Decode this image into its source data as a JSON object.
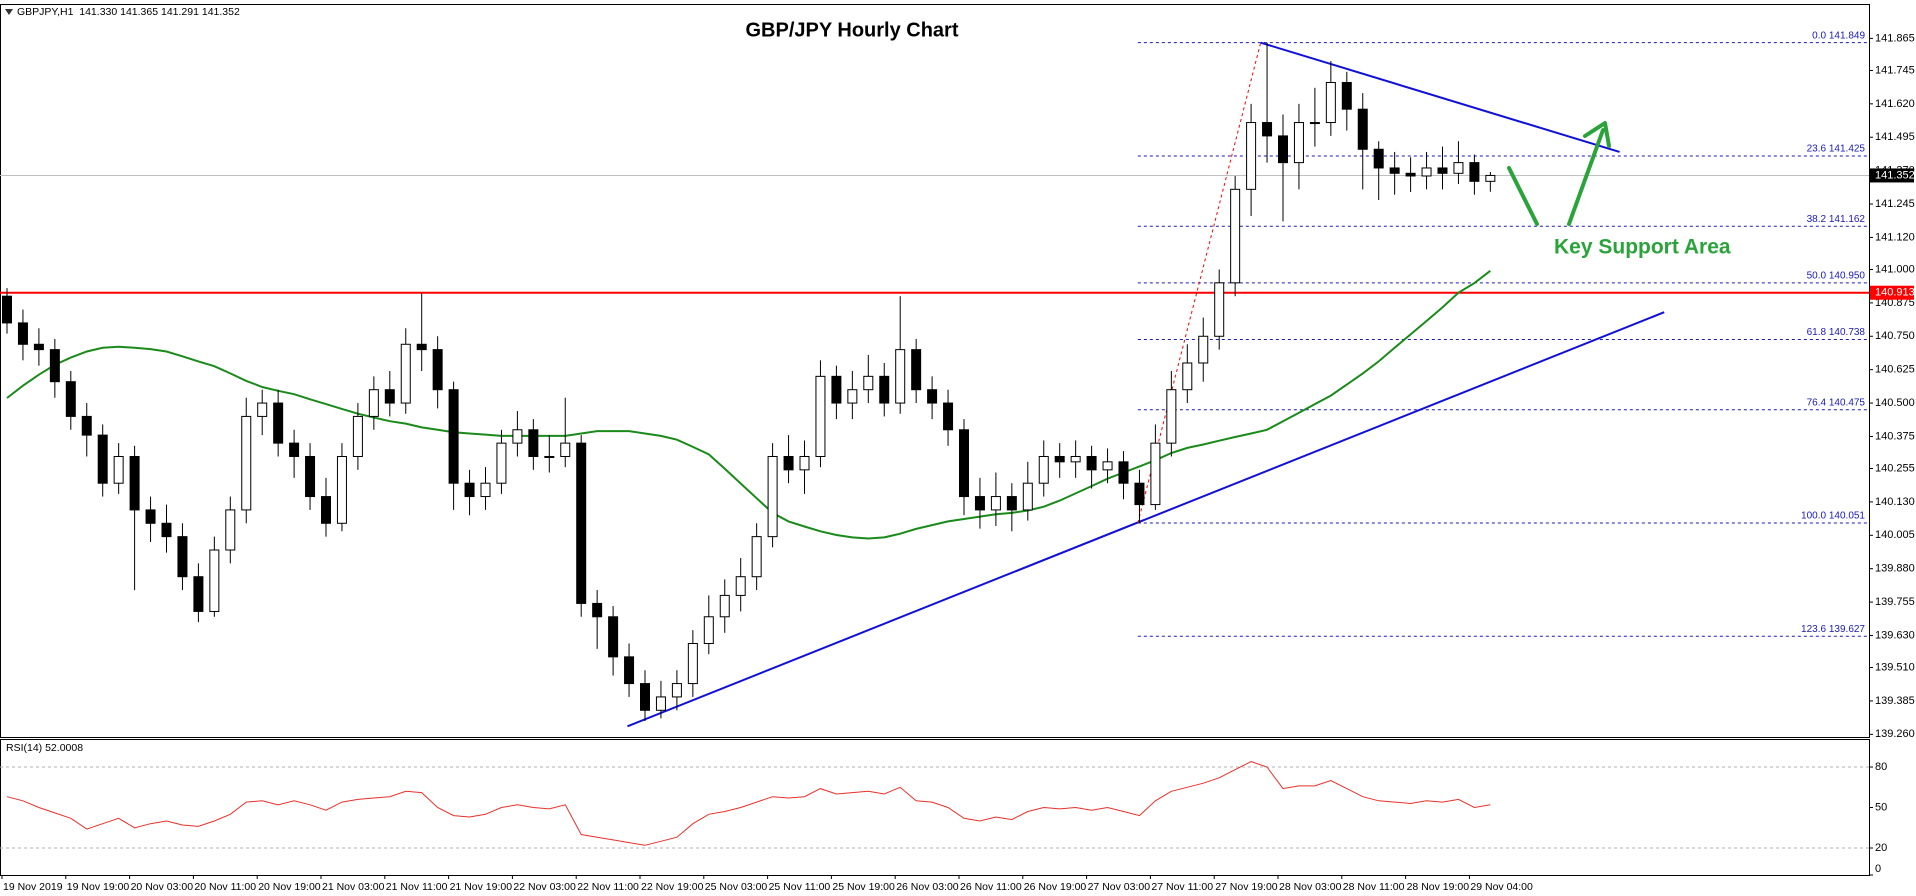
{
  "chart_data": {
    "type": "candlestick",
    "title": "GBP/JPY Hourly Chart",
    "header": "GBPJPY,H1  141.330 141.365 141.291 141.352",
    "support_label": "Key Support Area",
    "up_color": "#ffffff",
    "down_color": "#000000",
    "categories": [
      "19 Nov 2019",
      null,
      null,
      null,
      "19 Nov 19:00",
      null,
      null,
      null,
      "20 Nov 03:00",
      null,
      null,
      null,
      "20 Nov 11:00",
      null,
      null,
      null,
      "20 Nov 19:00",
      null,
      null,
      null,
      "21 Nov 03:00",
      null,
      null,
      null,
      "21 Nov 11:00",
      null,
      null,
      null,
      "21 Nov 19:00",
      null,
      null,
      null,
      "22 Nov 03:00",
      null,
      null,
      null,
      "22 Nov 11:00",
      null,
      null,
      null,
      "22 Nov 19:00",
      null,
      null,
      null,
      "25 Nov 03:00",
      null,
      null,
      null,
      "25 Nov 11:00",
      null,
      null,
      null,
      "25 Nov 19:00",
      null,
      null,
      null,
      "26 Nov 03:00",
      null,
      null,
      null,
      "26 Nov 11:00",
      null,
      null,
      null,
      "26 Nov 19:00",
      null,
      null,
      null,
      "27 Nov 03:00",
      null,
      null,
      null,
      "27 Nov 11:00",
      null,
      null,
      null,
      "27 Nov 19:00",
      null,
      null,
      null,
      "28 Nov 03:00",
      null,
      null,
      null,
      "28 Nov 11:00",
      null,
      null,
      null,
      "28 Nov 19:00",
      null,
      null,
      null,
      "29 Nov 04:00",
      null
    ],
    "open": [
      140.9,
      140.8,
      140.72,
      140.7,
      140.58,
      140.45,
      140.38,
      140.2,
      140.3,
      140.1,
      140.05,
      140.0,
      139.85,
      139.72,
      139.95,
      140.1,
      140.45,
      140.5,
      140.35,
      140.3,
      140.15,
      140.05,
      140.3,
      140.45,
      140.55,
      140.5,
      140.72,
      140.7,
      140.55,
      140.2,
      140.15,
      140.2,
      140.35,
      140.4,
      140.3,
      140.3,
      140.35,
      139.75,
      139.7,
      139.55,
      139.45,
      139.35,
      139.4,
      139.45,
      139.6,
      139.7,
      139.78,
      139.85,
      140.0,
      140.3,
      140.25,
      140.3,
      140.6,
      140.5,
      140.55,
      140.6,
      140.5,
      140.7,
      140.55,
      140.5,
      140.4,
      140.15,
      140.1,
      140.15,
      140.1,
      140.2,
      140.3,
      140.28,
      140.3,
      140.25,
      140.28,
      140.2,
      140.12,
      140.35,
      140.55,
      140.65,
      140.75,
      140.95,
      141.3,
      141.55,
      141.5,
      141.4,
      141.55,
      141.55,
      141.7,
      141.6,
      141.45,
      141.38,
      141.36,
      141.35,
      141.38,
      141.36,
      141.4,
      141.33
    ],
    "high": [
      140.93,
      140.85,
      140.78,
      140.74,
      140.62,
      140.5,
      140.42,
      140.35,
      140.34,
      140.15,
      140.12,
      140.05,
      139.9,
      140.0,
      140.15,
      140.52,
      140.55,
      140.55,
      140.4,
      140.35,
      140.22,
      140.35,
      140.5,
      140.6,
      140.62,
      140.78,
      140.91,
      140.75,
      140.58,
      140.25,
      140.26,
      140.4,
      140.47,
      140.44,
      140.38,
      140.52,
      140.38,
      139.8,
      139.74,
      139.6,
      139.5,
      139.46,
      139.5,
      139.65,
      139.78,
      139.84,
      139.92,
      140.05,
      140.35,
      140.38,
      140.36,
      140.66,
      140.64,
      140.62,
      140.68,
      140.65,
      140.9,
      140.74,
      140.6,
      140.55,
      140.44,
      140.22,
      140.24,
      140.2,
      140.28,
      140.36,
      140.35,
      140.36,
      140.34,
      140.33,
      140.32,
      140.25,
      140.42,
      140.62,
      140.72,
      140.82,
      141.0,
      141.35,
      141.62,
      141.849,
      141.58,
      141.62,
      141.68,
      141.78,
      141.74,
      141.66,
      141.48,
      141.44,
      141.42,
      141.44,
      141.46,
      141.48,
      141.43,
      141.365
    ],
    "low": [
      140.76,
      140.66,
      140.64,
      140.52,
      140.4,
      140.3,
      140.15,
      140.16,
      139.8,
      139.98,
      139.94,
      139.8,
      139.68,
      139.7,
      139.9,
      140.05,
      140.38,
      140.3,
      140.22,
      140.1,
      140.0,
      140.02,
      140.25,
      140.4,
      140.45,
      140.46,
      140.62,
      140.48,
      140.1,
      140.08,
      140.1,
      140.16,
      140.3,
      140.25,
      140.24,
      140.26,
      139.7,
      139.58,
      139.48,
      139.4,
      139.31,
      139.32,
      139.35,
      139.4,
      139.56,
      139.64,
      139.72,
      139.8,
      139.96,
      140.2,
      140.16,
      140.26,
      140.44,
      140.44,
      140.5,
      140.45,
      140.46,
      140.5,
      140.44,
      140.34,
      140.08,
      140.03,
      140.04,
      140.02,
      140.06,
      140.15,
      140.22,
      140.22,
      140.18,
      140.2,
      140.14,
      140.051,
      140.1,
      140.3,
      140.5,
      140.58,
      140.7,
      140.9,
      141.2,
      141.4,
      141.18,
      141.3,
      141.46,
      141.5,
      141.52,
      141.3,
      141.26,
      141.28,
      141.29,
      141.3,
      141.3,
      141.32,
      141.28,
      141.291
    ],
    "close": [
      140.8,
      140.72,
      140.7,
      140.58,
      140.45,
      140.38,
      140.2,
      140.3,
      140.1,
      140.05,
      140.0,
      139.85,
      139.72,
      139.95,
      140.1,
      140.45,
      140.5,
      140.35,
      140.3,
      140.15,
      140.05,
      140.3,
      140.45,
      140.55,
      140.5,
      140.72,
      140.7,
      140.55,
      140.2,
      140.15,
      140.2,
      140.35,
      140.4,
      140.3,
      140.3,
      140.35,
      139.75,
      139.7,
      139.55,
      139.45,
      139.35,
      139.4,
      139.45,
      139.6,
      139.7,
      139.78,
      139.85,
      140.0,
      140.3,
      140.25,
      140.3,
      140.6,
      140.5,
      140.55,
      140.6,
      140.5,
      140.7,
      140.55,
      140.5,
      140.4,
      140.15,
      140.1,
      140.15,
      140.1,
      140.2,
      140.3,
      140.28,
      140.3,
      140.25,
      140.28,
      140.2,
      140.12,
      140.35,
      140.55,
      140.65,
      140.75,
      140.95,
      141.3,
      141.55,
      141.5,
      141.4,
      141.55,
      141.55,
      141.7,
      141.6,
      141.45,
      141.38,
      141.36,
      141.35,
      141.38,
      141.36,
      141.4,
      141.33,
      141.352
    ],
    "ma": {
      "color": "#1a8a1a",
      "values": [
        140.519,
        140.565,
        140.606,
        140.643,
        140.67,
        140.693,
        140.707,
        140.711,
        140.707,
        140.702,
        140.693,
        140.675,
        140.656,
        140.638,
        140.611,
        140.583,
        140.56,
        140.546,
        140.533,
        140.514,
        140.496,
        140.478,
        140.46,
        140.446,
        140.432,
        140.423,
        140.409,
        140.4,
        140.391,
        140.386,
        140.382,
        140.377,
        140.377,
        140.377,
        140.377,
        140.377,
        140.386,
        140.395,
        140.395,
        140.395,
        140.386,
        140.377,
        140.363,
        140.336,
        140.308,
        140.254,
        140.199,
        140.144,
        140.089,
        140.057,
        140.038,
        140.02,
        140.006,
        139.997,
        139.993,
        139.997,
        140.011,
        140.029,
        140.043,
        140.057,
        140.066,
        140.075,
        140.084,
        140.089,
        140.098,
        140.112,
        140.135,
        140.162,
        140.189,
        140.217,
        140.24,
        140.263,
        140.286,
        140.313,
        140.332,
        140.345,
        140.359,
        140.373,
        140.386,
        140.4,
        140.432,
        140.464,
        140.496,
        140.528,
        140.569,
        140.611,
        140.656,
        140.707,
        140.757,
        140.807,
        140.858,
        140.913,
        140.949,
        140.995
      ]
    },
    "ylim": [
      139.25,
      141.99
    ],
    "yticks": [
      141.865,
      141.745,
      {
        "value": 141.62,
        "label": "141.620"
      },
      141.495,
      {
        "value": 141.37,
        "label": "141.370"
      },
      141.245,
      {
        "value": 141.12,
        "label": "141.120"
      },
      {
        "value": 141.0,
        "label": "141.000"
      },
      140.875,
      {
        "value": 140.75,
        "label": "140.750"
      },
      140.625,
      {
        "value": 140.5,
        "label": "140.500"
      },
      140.375,
      140.255,
      {
        "value": 140.13,
        "label": "140.130"
      },
      140.005,
      {
        "value": 139.88,
        "label": "139.880"
      },
      139.755,
      {
        "value": 139.63,
        "label": "139.630"
      },
      {
        "value": 139.51,
        "label": "139.510"
      },
      139.385,
      {
        "value": 139.26,
        "label": "139.260"
      }
    ],
    "current_price": 141.352,
    "hline": {
      "value": 140.913,
      "color": "#ff0000"
    },
    "fib_levels": [
      {
        "value": 141.849,
        "label": "0.0 141.849"
      },
      {
        "value": 141.425,
        "label": "23.6 141.425"
      },
      {
        "value": 141.162,
        "label": "38.2 141.162"
      },
      {
        "value": 140.95,
        "label": "50.0 140.950"
      },
      {
        "value": 140.738,
        "label": "61.8 140.738"
      },
      {
        "value": 140.475,
        "label": "76.4 140.475"
      },
      {
        "value": 140.051,
        "label": "100.0 140.051"
      },
      {
        "value": 139.627,
        "label": "123.6 139.627"
      }
    ],
    "fib_color": "#1a1ab8",
    "trendlines": [
      {
        "x": [
          38.9,
          103.9
        ],
        "y": [
          139.29,
          140.84
        ],
        "color": "#1010d8"
      },
      {
        "x": [
          78.6,
          101.1
        ],
        "y": [
          141.849,
          141.44
        ],
        "color": "#1010d8"
      },
      {
        "x": [
          70.9,
          78.6
        ],
        "y": [
          140.051,
          141.849
        ],
        "color": "#ff0000",
        "dash": true
      }
    ],
    "rsi": {
      "label": "RSI(14) 52.0008",
      "color": "#e8302a",
      "ylim": [
        0,
        100
      ],
      "yticks": [
        0,
        20,
        50,
        80
      ],
      "levels": [
        20,
        80
      ],
      "values": [
        58,
        55,
        50,
        46,
        42,
        34,
        38,
        42,
        35,
        38,
        40,
        37,
        36,
        40,
        45,
        54,
        55,
        52,
        55,
        52,
        48,
        54,
        56,
        57,
        58,
        62,
        61,
        50,
        44,
        43,
        45,
        50,
        52,
        50,
        49,
        52,
        30,
        28,
        26,
        24,
        22,
        25,
        28,
        38,
        45,
        47,
        50,
        54,
        58,
        57,
        58,
        64,
        60,
        61,
        62,
        60,
        65,
        55,
        54,
        50,
        42,
        40,
        43,
        41,
        47,
        50,
        49,
        50,
        48,
        50,
        47,
        44,
        55,
        62,
        65,
        68,
        72,
        78,
        84,
        80,
        64,
        66,
        66,
        70,
        64,
        58,
        55,
        54,
        53,
        55,
        54,
        56,
        50,
        52
      ]
    }
  }
}
